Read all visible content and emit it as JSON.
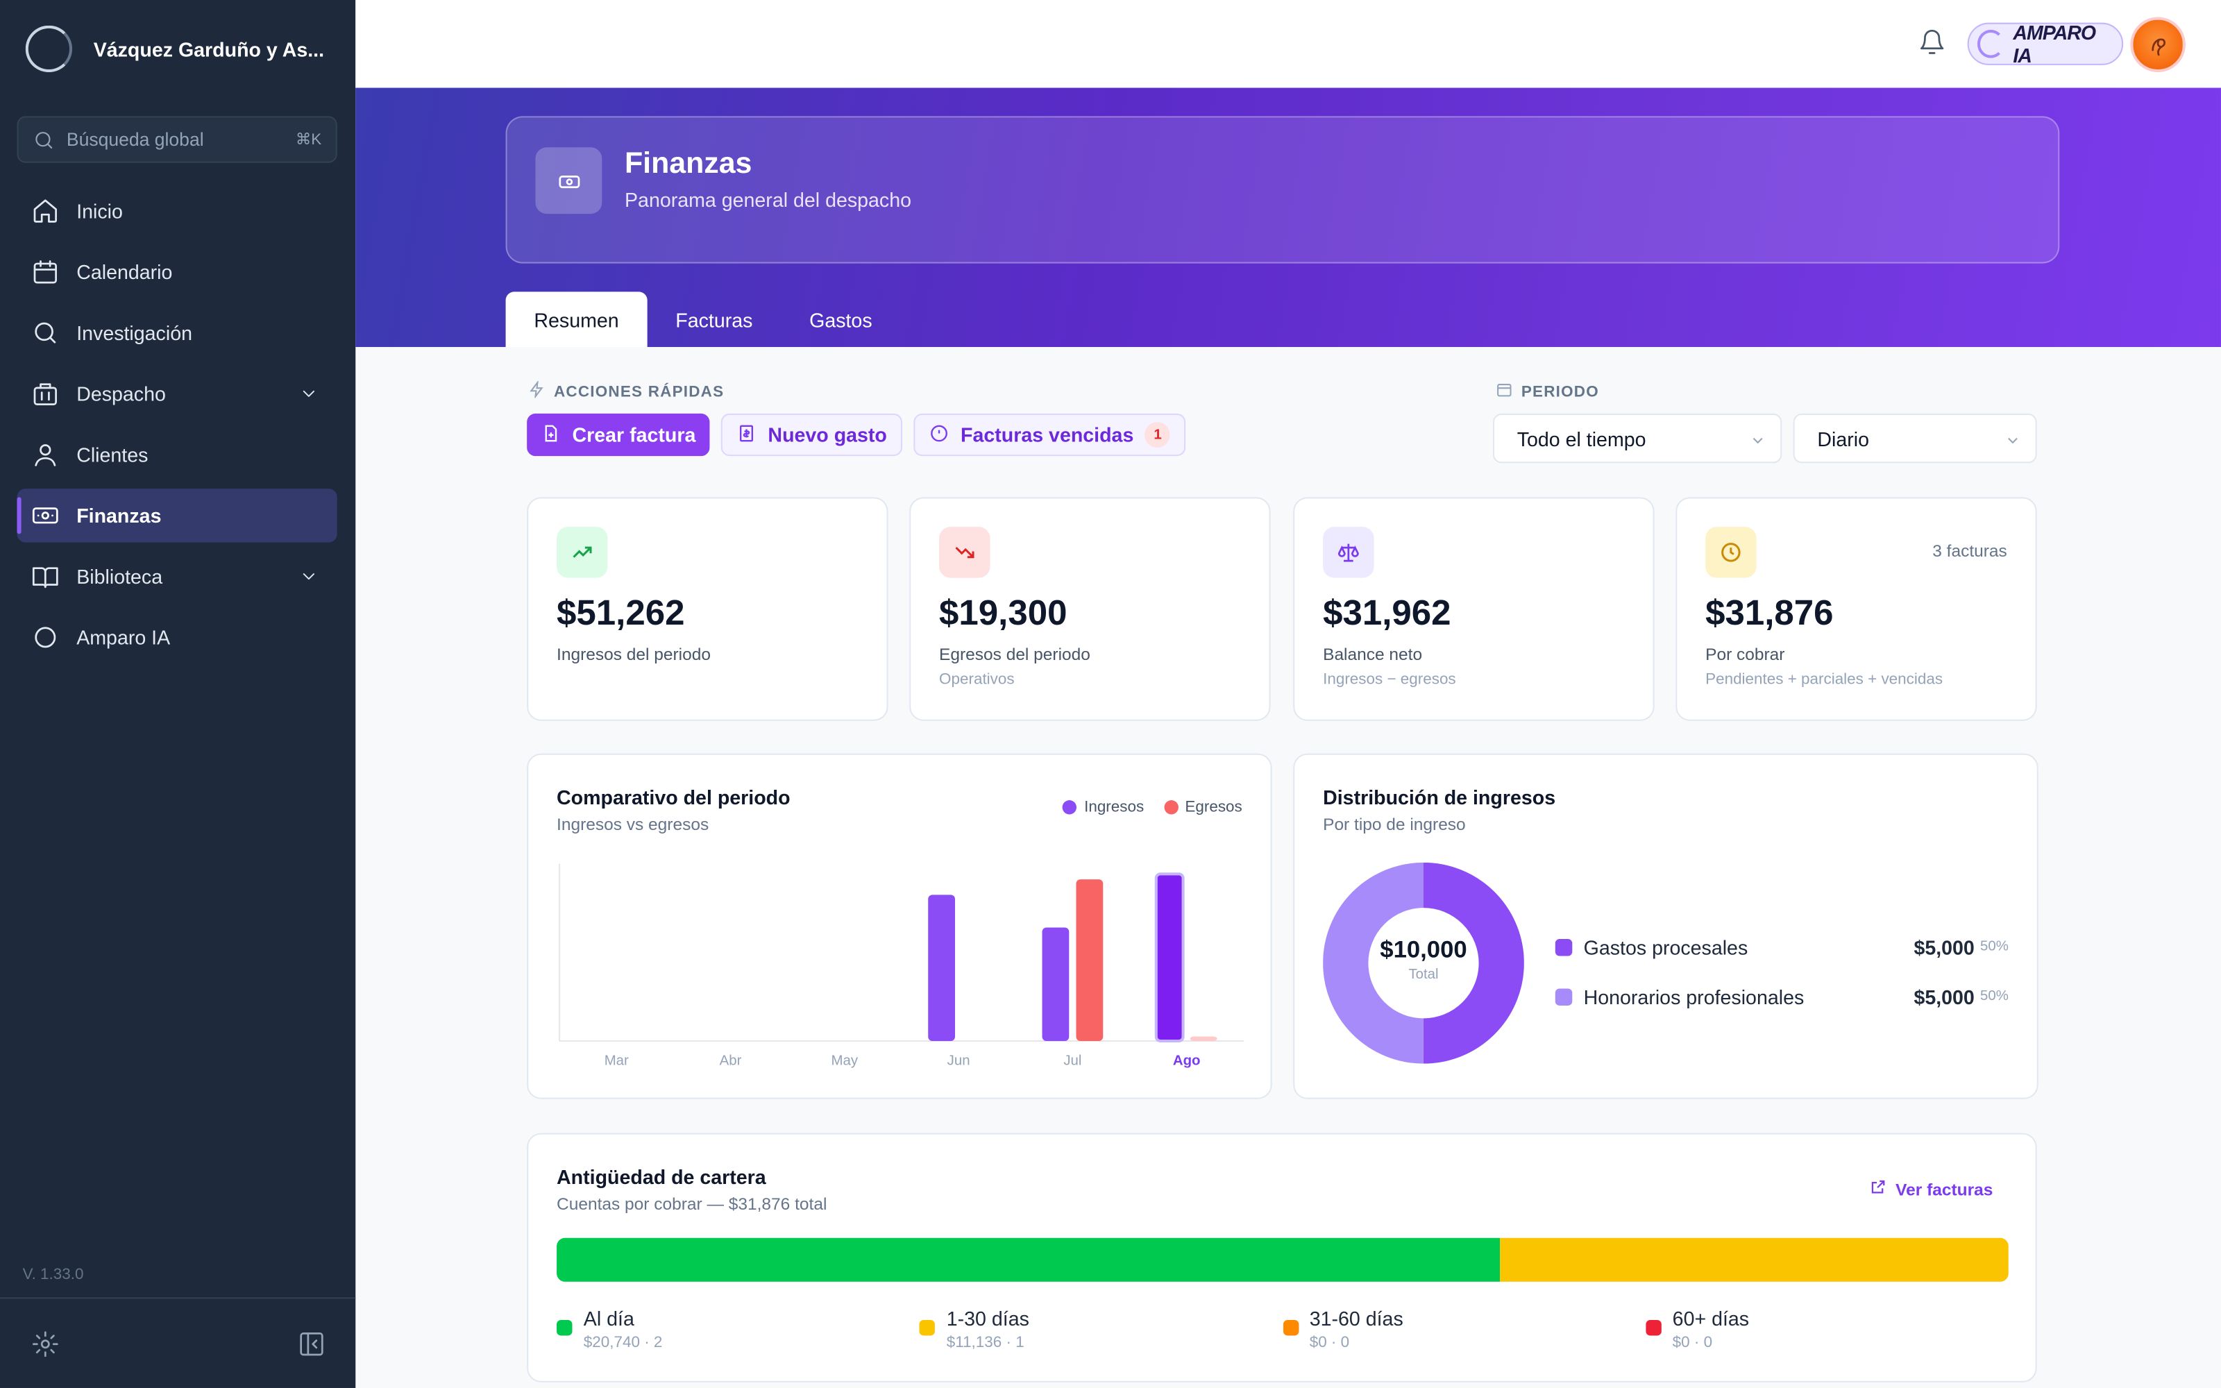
{
  "org": {
    "name": "Vázquez Garduño y As..."
  },
  "search": {
    "placeholder": "Búsqueda global",
    "shortcut": "⌘K"
  },
  "nav": {
    "items": [
      {
        "label": "Inicio"
      },
      {
        "label": "Calendario"
      },
      {
        "label": "Investigación"
      },
      {
        "label": "Despacho"
      },
      {
        "label": "Clientes"
      },
      {
        "label": "Finanzas"
      },
      {
        "label": "Biblioteca"
      },
      {
        "label": "Amparo IA"
      }
    ],
    "active": "Finanzas"
  },
  "version": "V. 1.33.0",
  "topbar": {
    "assistant_label": "AMPARO IA"
  },
  "hero": {
    "title": "Finanzas",
    "subtitle": "Panorama general del despacho"
  },
  "tabs": [
    "Resumen",
    "Facturas",
    "Gastos"
  ],
  "quick_actions": {
    "label": "ACCIONES RÁPIDAS",
    "create_invoice": "Crear factura",
    "new_expense": "Nuevo gasto",
    "overdue": "Facturas vencidas",
    "overdue_count": "1"
  },
  "period": {
    "label": "PERIODO",
    "range": "Todo el tiempo",
    "granularity": "Diario"
  },
  "kpis": [
    {
      "value": "$51,262",
      "label": "Ingresos del periodo",
      "sub": "",
      "corner": ""
    },
    {
      "value": "$19,300",
      "label": "Egresos del periodo",
      "sub": "Operativos",
      "corner": ""
    },
    {
      "value": "$31,962",
      "label": "Balance neto",
      "sub": "Ingresos − egresos",
      "corner": ""
    },
    {
      "value": "$31,876",
      "label": "Por cobrar",
      "sub": "Pendientes + parciales + vencidas",
      "corner": "3 facturas"
    }
  ],
  "comparison": {
    "title": "Comparativo del periodo",
    "subtitle": "Ingresos vs egresos",
    "legend": [
      "Ingresos",
      "Egresos"
    ]
  },
  "chart_data": {
    "type": "bar",
    "categories": [
      "Mar",
      "Abr",
      "May",
      "Jun",
      "Jul",
      "Ago"
    ],
    "highlighted_category": "Ago",
    "series": [
      {
        "name": "Ingresos",
        "color": "#8b4cf6",
        "values": [
          0,
          0,
          0,
          16100,
          12500,
          18400
        ]
      },
      {
        "name": "Egresos",
        "color": "#f86464",
        "values": [
          0,
          0,
          0,
          0,
          17800,
          500
        ]
      }
    ],
    "ylim": [
      0,
      19500
    ],
    "grid": false
  },
  "distribution": {
    "title": "Distribución de ingresos",
    "subtitle": "Por tipo de ingreso",
    "total_value": "$10,000",
    "total_label": "Total",
    "items": [
      {
        "name": "Gastos procesales",
        "amount": "$5,000",
        "pct": "50%",
        "share": 0.5,
        "color": "#8b4cf6"
      },
      {
        "name": "Honorarios profesionales",
        "amount": "$5,000",
        "pct": "50%",
        "share": 0.5,
        "color": "#a78bfa"
      }
    ]
  },
  "aging": {
    "title": "Antigüedad de cartera",
    "subtitle": "Cuentas por cobrar — $31,876 total",
    "link": "Ver facturas",
    "buckets": [
      {
        "label": "Al día",
        "detail": "$20,740 · 2",
        "share": 0.65,
        "color": "#00c950"
      },
      {
        "label": "1-30 días",
        "detail": "$11,136 · 1",
        "share": 0.35,
        "color": "#fbc400"
      },
      {
        "label": "31-60 días",
        "detail": "$0 · 0",
        "share": 0,
        "color": "#ff8a00"
      },
      {
        "label": "60+ días",
        "detail": "$0 · 0",
        "share": 0,
        "color": "#ed2237"
      }
    ]
  }
}
